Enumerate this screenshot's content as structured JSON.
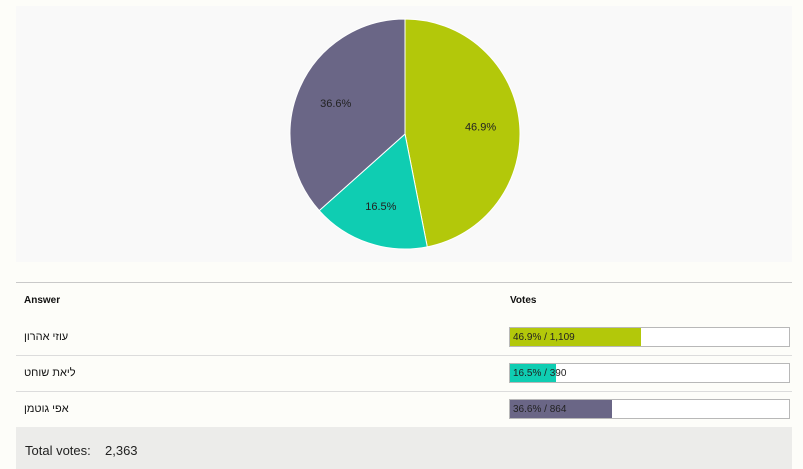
{
  "chart_data": {
    "type": "pie",
    "title": "",
    "slices": [
      {
        "label": "עוזי אהרון",
        "value": 46.9,
        "display": "46.9%",
        "color": "#b3c80a"
      },
      {
        "label": "ליאת שוחט",
        "value": 16.5,
        "display": "16.5%",
        "color": "#0fcdb2"
      },
      {
        "label": "אפי גוטמן",
        "value": 36.6,
        "display": "36.6%",
        "color": "#6a6686"
      }
    ]
  },
  "table": {
    "header_answer": "Answer",
    "header_votes": "Votes",
    "rows": [
      {
        "answer": "עוזי אהרון",
        "percent": 46.9,
        "bar_text": "46.9% / 1,109",
        "color": "#b3c80a"
      },
      {
        "answer": "ליאת שוחט",
        "percent": 16.5,
        "bar_text": "16.5% / 390",
        "color": "#0fcdb2"
      },
      {
        "answer": "אפי גוטמן",
        "percent": 36.6,
        "bar_text": "36.6% / 864",
        "color": "#6a6686"
      }
    ]
  },
  "total": {
    "label": "Total votes:",
    "value": "2,363"
  }
}
